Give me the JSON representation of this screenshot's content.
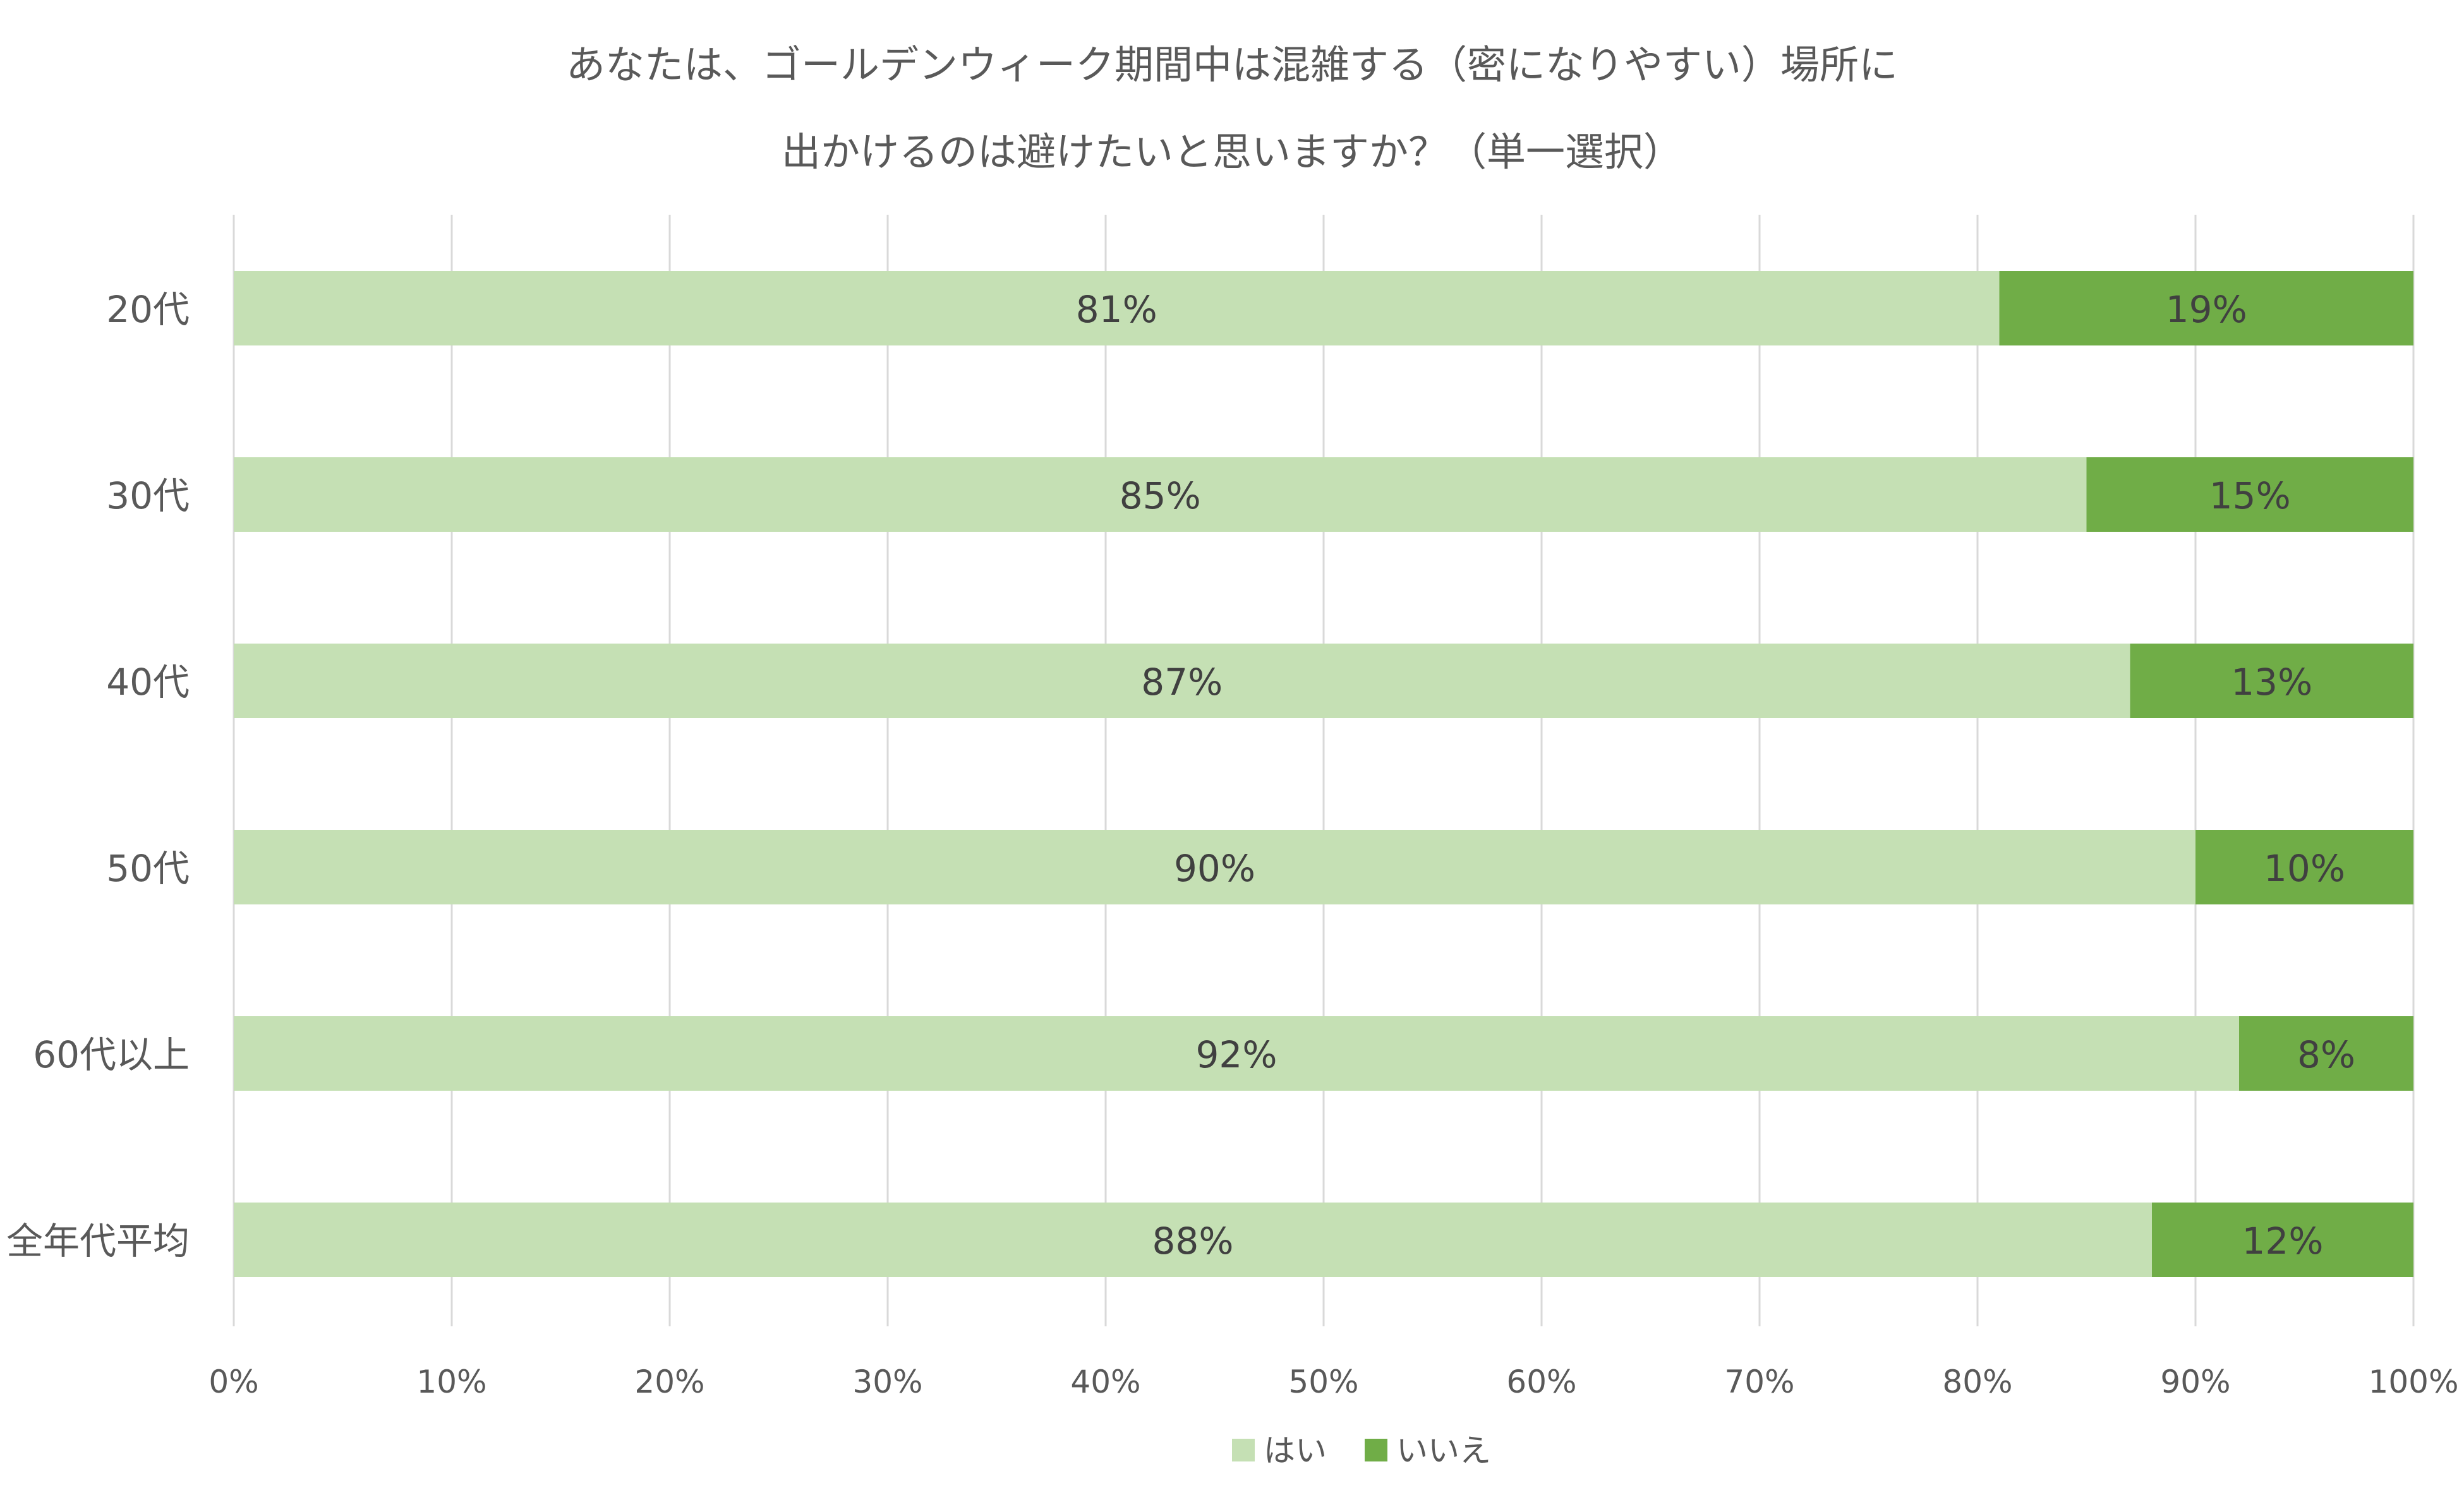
{
  "chart_data": {
    "type": "bar",
    "orientation": "horizontal",
    "stacked": "percent",
    "title": "あなたは、ゴールデンウィーク期間中は混雑する（密になりやすい）場所に",
    "subtitle": "出かけるのは避けたいと思いますか？（単一選択）",
    "categories": [
      "20代",
      "30代",
      "40代",
      "50代",
      "60代以上",
      "全年代平均"
    ],
    "series": [
      {
        "name": "はい",
        "color": "#c5e0b4",
        "values": [
          81,
          85,
          87,
          90,
          92,
          88
        ],
        "labels": [
          "81%",
          "85%",
          "87%",
          "90%",
          "92%",
          "88%"
        ]
      },
      {
        "name": "いいえ",
        "color": "#70ad47",
        "values": [
          19,
          15,
          13,
          10,
          8,
          12
        ],
        "labels": [
          "19%",
          "15%",
          "13%",
          "10%",
          "8%",
          "12%"
        ]
      }
    ],
    "xlim": [
      0,
      100
    ],
    "xticks": [
      "0%",
      "10%",
      "20%",
      "30%",
      "40%",
      "50%",
      "60%",
      "70%",
      "80%",
      "90%",
      "100%"
    ],
    "grid": true,
    "legend": "bottom-center"
  }
}
